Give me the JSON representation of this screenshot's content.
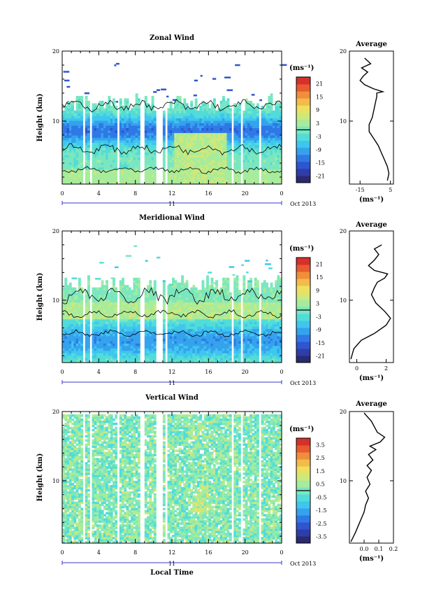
{
  "colors": {
    "colormap": [
      "#2a2a70",
      "#2f3da8",
      "#2f55cf",
      "#2f79e6",
      "#35a2ee",
      "#3fc6ef",
      "#52dcd8",
      "#7ae7c0",
      "#a6ec9c",
      "#cfe87a",
      "#ede060",
      "#f3bb4a",
      "#f08e3a",
      "#e85a30",
      "#d5302a"
    ],
    "contour": "#000000",
    "line": "#000000"
  },
  "chart_data": [
    {
      "type": "heatmap",
      "title": "Zonal Wind",
      "xlabel": "",
      "ylabel": "Height (km)",
      "xticks": [
        "0",
        "4",
        "8",
        "12",
        "16",
        "20",
        "0"
      ],
      "yticks": [
        "10",
        "20"
      ],
      "ylim": [
        1,
        20
      ],
      "xlim": [
        0,
        24
      ],
      "date_axis": {
        "day": "11",
        "suffix": "Oct 2013"
      },
      "colorbar": {
        "unit": "(ms⁻¹)",
        "labels": [
          "21",
          "15",
          "9",
          "3",
          "-3",
          "-9",
          "-15",
          "-21"
        ],
        "range": [
          -24,
          24
        ]
      },
      "data_top_km": 12.5,
      "jet": {
        "center_km": 8.5,
        "min_value": -13
      },
      "profile": {
        "title": "Average",
        "xlabel": "(ms⁻¹)",
        "xticks": [
          "-15",
          "5"
        ],
        "yticks": [
          "10",
          "20"
        ],
        "xlim": [
          -22,
          7
        ],
        "ylim": [
          1,
          20
        ],
        "points": [
          [
            3,
            1.5
          ],
          [
            4,
            2.5
          ],
          [
            3,
            3.5
          ],
          [
            1,
            4.5
          ],
          [
            -1,
            5.5
          ],
          [
            -3,
            6.5
          ],
          [
            -6,
            7.5
          ],
          [
            -9,
            8.5
          ],
          [
            -9,
            9.5
          ],
          [
            -7,
            10.5
          ],
          [
            -6,
            11.5
          ],
          [
            -5,
            12.5
          ],
          [
            -4,
            13.5
          ],
          [
            -4,
            14.0
          ],
          [
            0,
            14.2
          ],
          [
            -6,
            14.6
          ],
          [
            -12,
            15.2
          ],
          [
            -15,
            15.8
          ],
          [
            -13,
            16.4
          ],
          [
            -10,
            17.0
          ],
          [
            -14,
            17.6
          ],
          [
            -8,
            18.2
          ],
          [
            -12,
            19.0
          ]
        ]
      }
    },
    {
      "type": "heatmap",
      "title": "Meridional Wind",
      "xlabel": "",
      "ylabel": "Height (km)",
      "xticks": [
        "0",
        "4",
        "8",
        "12",
        "16",
        "20",
        "0"
      ],
      "yticks": [
        "10",
        "20"
      ],
      "ylim": [
        1,
        20
      ],
      "xlim": [
        0,
        24
      ],
      "date_axis": {
        "day": "11",
        "suffix": "Oct 2013"
      },
      "colorbar": {
        "unit": "(ms⁻¹)",
        "labels": [
          "21",
          "15",
          "9",
          "3",
          "-3",
          "-9",
          "-15",
          "-21"
        ],
        "range": [
          -24,
          24
        ]
      },
      "data_top_km": 12.2,
      "jet": {
        "center_km": 4.0,
        "min_value": -10
      },
      "profile": {
        "title": "Average",
        "xlabel": "(ms⁻¹)",
        "xticks": [
          "0",
          "2"
        ],
        "yticks": [
          "10",
          "20"
        ],
        "xlim": [
          -0.5,
          2.5
        ],
        "ylim": [
          1,
          20
        ],
        "points": [
          [
            -0.4,
            1.5
          ],
          [
            -0.2,
            3
          ],
          [
            0.3,
            4.2
          ],
          [
            1.2,
            5.2
          ],
          [
            2.0,
            6.4
          ],
          [
            2.3,
            7.4
          ],
          [
            1.9,
            8.4
          ],
          [
            1.3,
            9.6
          ],
          [
            1.0,
            10.8
          ],
          [
            1.2,
            11.8
          ],
          [
            1.4,
            12.6
          ],
          [
            1.9,
            13.2
          ],
          [
            2.1,
            13.8
          ],
          [
            1.2,
            14.3
          ],
          [
            0.8,
            15.0
          ],
          [
            1.2,
            15.8
          ],
          [
            1.5,
            16.6
          ],
          [
            1.2,
            17.4
          ],
          [
            1.7,
            18.0
          ]
        ]
      }
    },
    {
      "type": "heatmap",
      "title": "Vertical Wind",
      "xlabel": "Local Time",
      "ylabel": "Height (km)",
      "xticks": [
        "0",
        "4",
        "8",
        "12",
        "16",
        "20",
        "0"
      ],
      "yticks": [
        "10",
        "20"
      ],
      "ylim": [
        1,
        20
      ],
      "xlim": [
        0,
        24
      ],
      "date_axis": {
        "day": "11",
        "suffix": "Oct 2013"
      },
      "colorbar": {
        "unit": "(ms⁻¹)",
        "labels": [
          "3.5",
          "2.5",
          "1.5",
          "0.5",
          "-0.5",
          "-1.5",
          "-2.5",
          "-3.5"
        ],
        "range": [
          -4,
          4
        ]
      },
      "data_top_km": 20,
      "jet": {
        "center_km": 6.0,
        "min_value": 0
      },
      "profile": {
        "title": "Average",
        "xlabel": "(ms⁻¹)",
        "xticks": [
          "0.0",
          "0.1",
          "0.2"
        ],
        "yticks": [
          "10",
          "20"
        ],
        "xlim": [
          -0.1,
          0.2
        ],
        "ylim": [
          1,
          20
        ],
        "points": [
          [
            -0.09,
            1.2
          ],
          [
            -0.06,
            2.5
          ],
          [
            -0.04,
            3.5
          ],
          [
            -0.02,
            4.5
          ],
          [
            0.0,
            5.5
          ],
          [
            0.01,
            6.5
          ],
          [
            0.03,
            7.5
          ],
          [
            0.01,
            8.5
          ],
          [
            0.04,
            9.5
          ],
          [
            0.02,
            10.5
          ],
          [
            0.05,
            11.5
          ],
          [
            0.02,
            12.2
          ],
          [
            0.06,
            13.0
          ],
          [
            0.03,
            13.8
          ],
          [
            0.08,
            14.5
          ],
          [
            0.04,
            15.0
          ],
          [
            0.11,
            15.6
          ],
          [
            0.14,
            16.3
          ],
          [
            0.09,
            17.0
          ],
          [
            0.07,
            17.8
          ],
          [
            0.05,
            18.6
          ],
          [
            0.02,
            19.3
          ],
          [
            0.0,
            19.8
          ]
        ]
      }
    }
  ]
}
